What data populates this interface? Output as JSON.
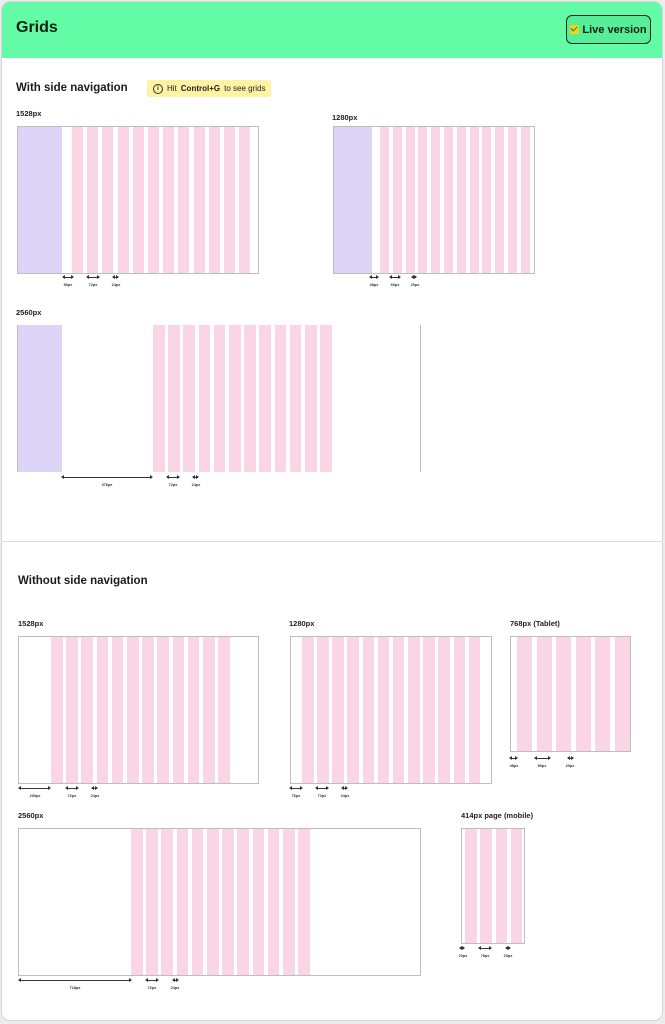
{
  "header": {
    "title": "Grids",
    "live_button": "Live version"
  },
  "side_nav_section": {
    "title": "With side navigation",
    "hint_prefix": "Hit",
    "hint_key": "Control+G",
    "hint_suffix": "to see grids",
    "grids": [
      {
        "label": "1528px",
        "measures": [
          "80px",
          "72px",
          "24px"
        ]
      },
      {
        "label": "1280px",
        "measures": [
          "48px",
          "60px",
          "20px"
        ]
      },
      {
        "label": "2560px",
        "measures": [
          "376px",
          "72px",
          "24px"
        ]
      }
    ]
  },
  "no_nav_section": {
    "title": "Without side navigation",
    "grids": [
      {
        "label": "1528px",
        "measures": [
          "200px",
          "72px",
          "24px"
        ]
      },
      {
        "label": "1280px",
        "measures": [
          "76px",
          "72px",
          "24px"
        ]
      },
      {
        "label": "768px (Tablet)",
        "measures": [
          "48px",
          "96px",
          "20px"
        ]
      },
      {
        "label": "2560px",
        "measures": [
          "718px",
          "72px",
          "24px"
        ]
      },
      {
        "label": "414px page (mobile)",
        "measures": [
          "20px",
          "78px",
          "20px"
        ]
      }
    ]
  },
  "colors": {
    "header_bg": "#63fba6",
    "nav_fill": "#dcd3f7",
    "column_fill": "#f9d5e6",
    "hint_bg": "#fdf3a3"
  }
}
